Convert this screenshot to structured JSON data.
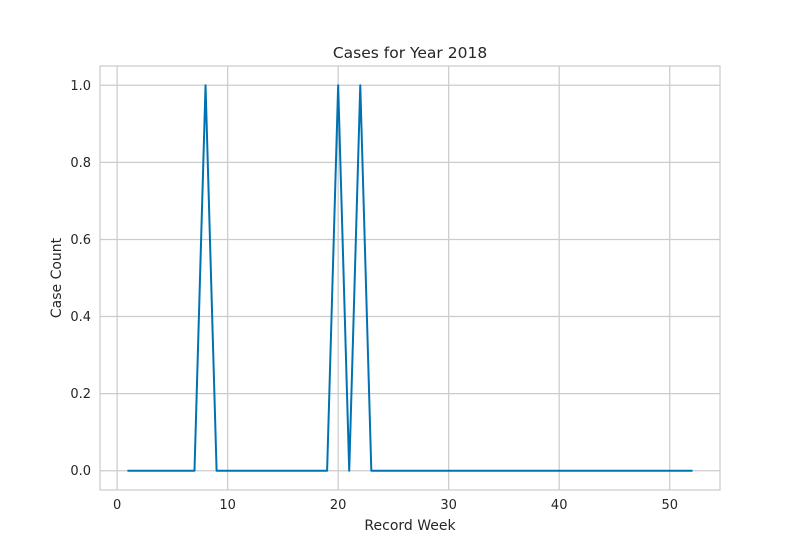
{
  "chart_data": {
    "type": "line",
    "title": "Cases for Year 2018",
    "xlabel": "Record Week",
    "ylabel": "Case Count",
    "xlim": [
      -1.55,
      54.55
    ],
    "ylim": [
      -0.05,
      1.05
    ],
    "xticks": [
      0,
      10,
      20,
      30,
      40,
      50
    ],
    "xtick_labels": [
      "0",
      "10",
      "20",
      "30",
      "40",
      "50"
    ],
    "yticks": [
      0.0,
      0.2,
      0.4,
      0.6,
      0.8,
      1.0
    ],
    "ytick_labels": [
      "0.0",
      "0.2",
      "0.4",
      "0.6",
      "0.8",
      "1.0"
    ],
    "grid": true,
    "series": [
      {
        "color": "#0072b2",
        "x": [
          1,
          2,
          3,
          4,
          5,
          6,
          7,
          8,
          9,
          10,
          11,
          12,
          13,
          14,
          15,
          16,
          17,
          18,
          19,
          20,
          21,
          22,
          23,
          24,
          25,
          26,
          27,
          28,
          29,
          30,
          31,
          32,
          33,
          34,
          35,
          36,
          37,
          38,
          39,
          40,
          41,
          42,
          43,
          44,
          45,
          46,
          47,
          48,
          49,
          50,
          51,
          52
        ],
        "values": [
          0,
          0,
          0,
          0,
          0,
          0,
          0,
          1,
          0,
          0,
          0,
          0,
          0,
          0,
          0,
          0,
          0,
          0,
          0,
          1,
          0,
          1,
          0,
          0,
          0,
          0,
          0,
          0,
          0,
          0,
          0,
          0,
          0,
          0,
          0,
          0,
          0,
          0,
          0,
          0,
          0,
          0,
          0,
          0,
          0,
          0,
          0,
          0,
          0,
          0,
          0,
          0
        ]
      }
    ],
    "colors": {
      "grid": "#cccccc",
      "frame": "#cccccc",
      "text": "#262626",
      "background": "#ffffff"
    }
  }
}
